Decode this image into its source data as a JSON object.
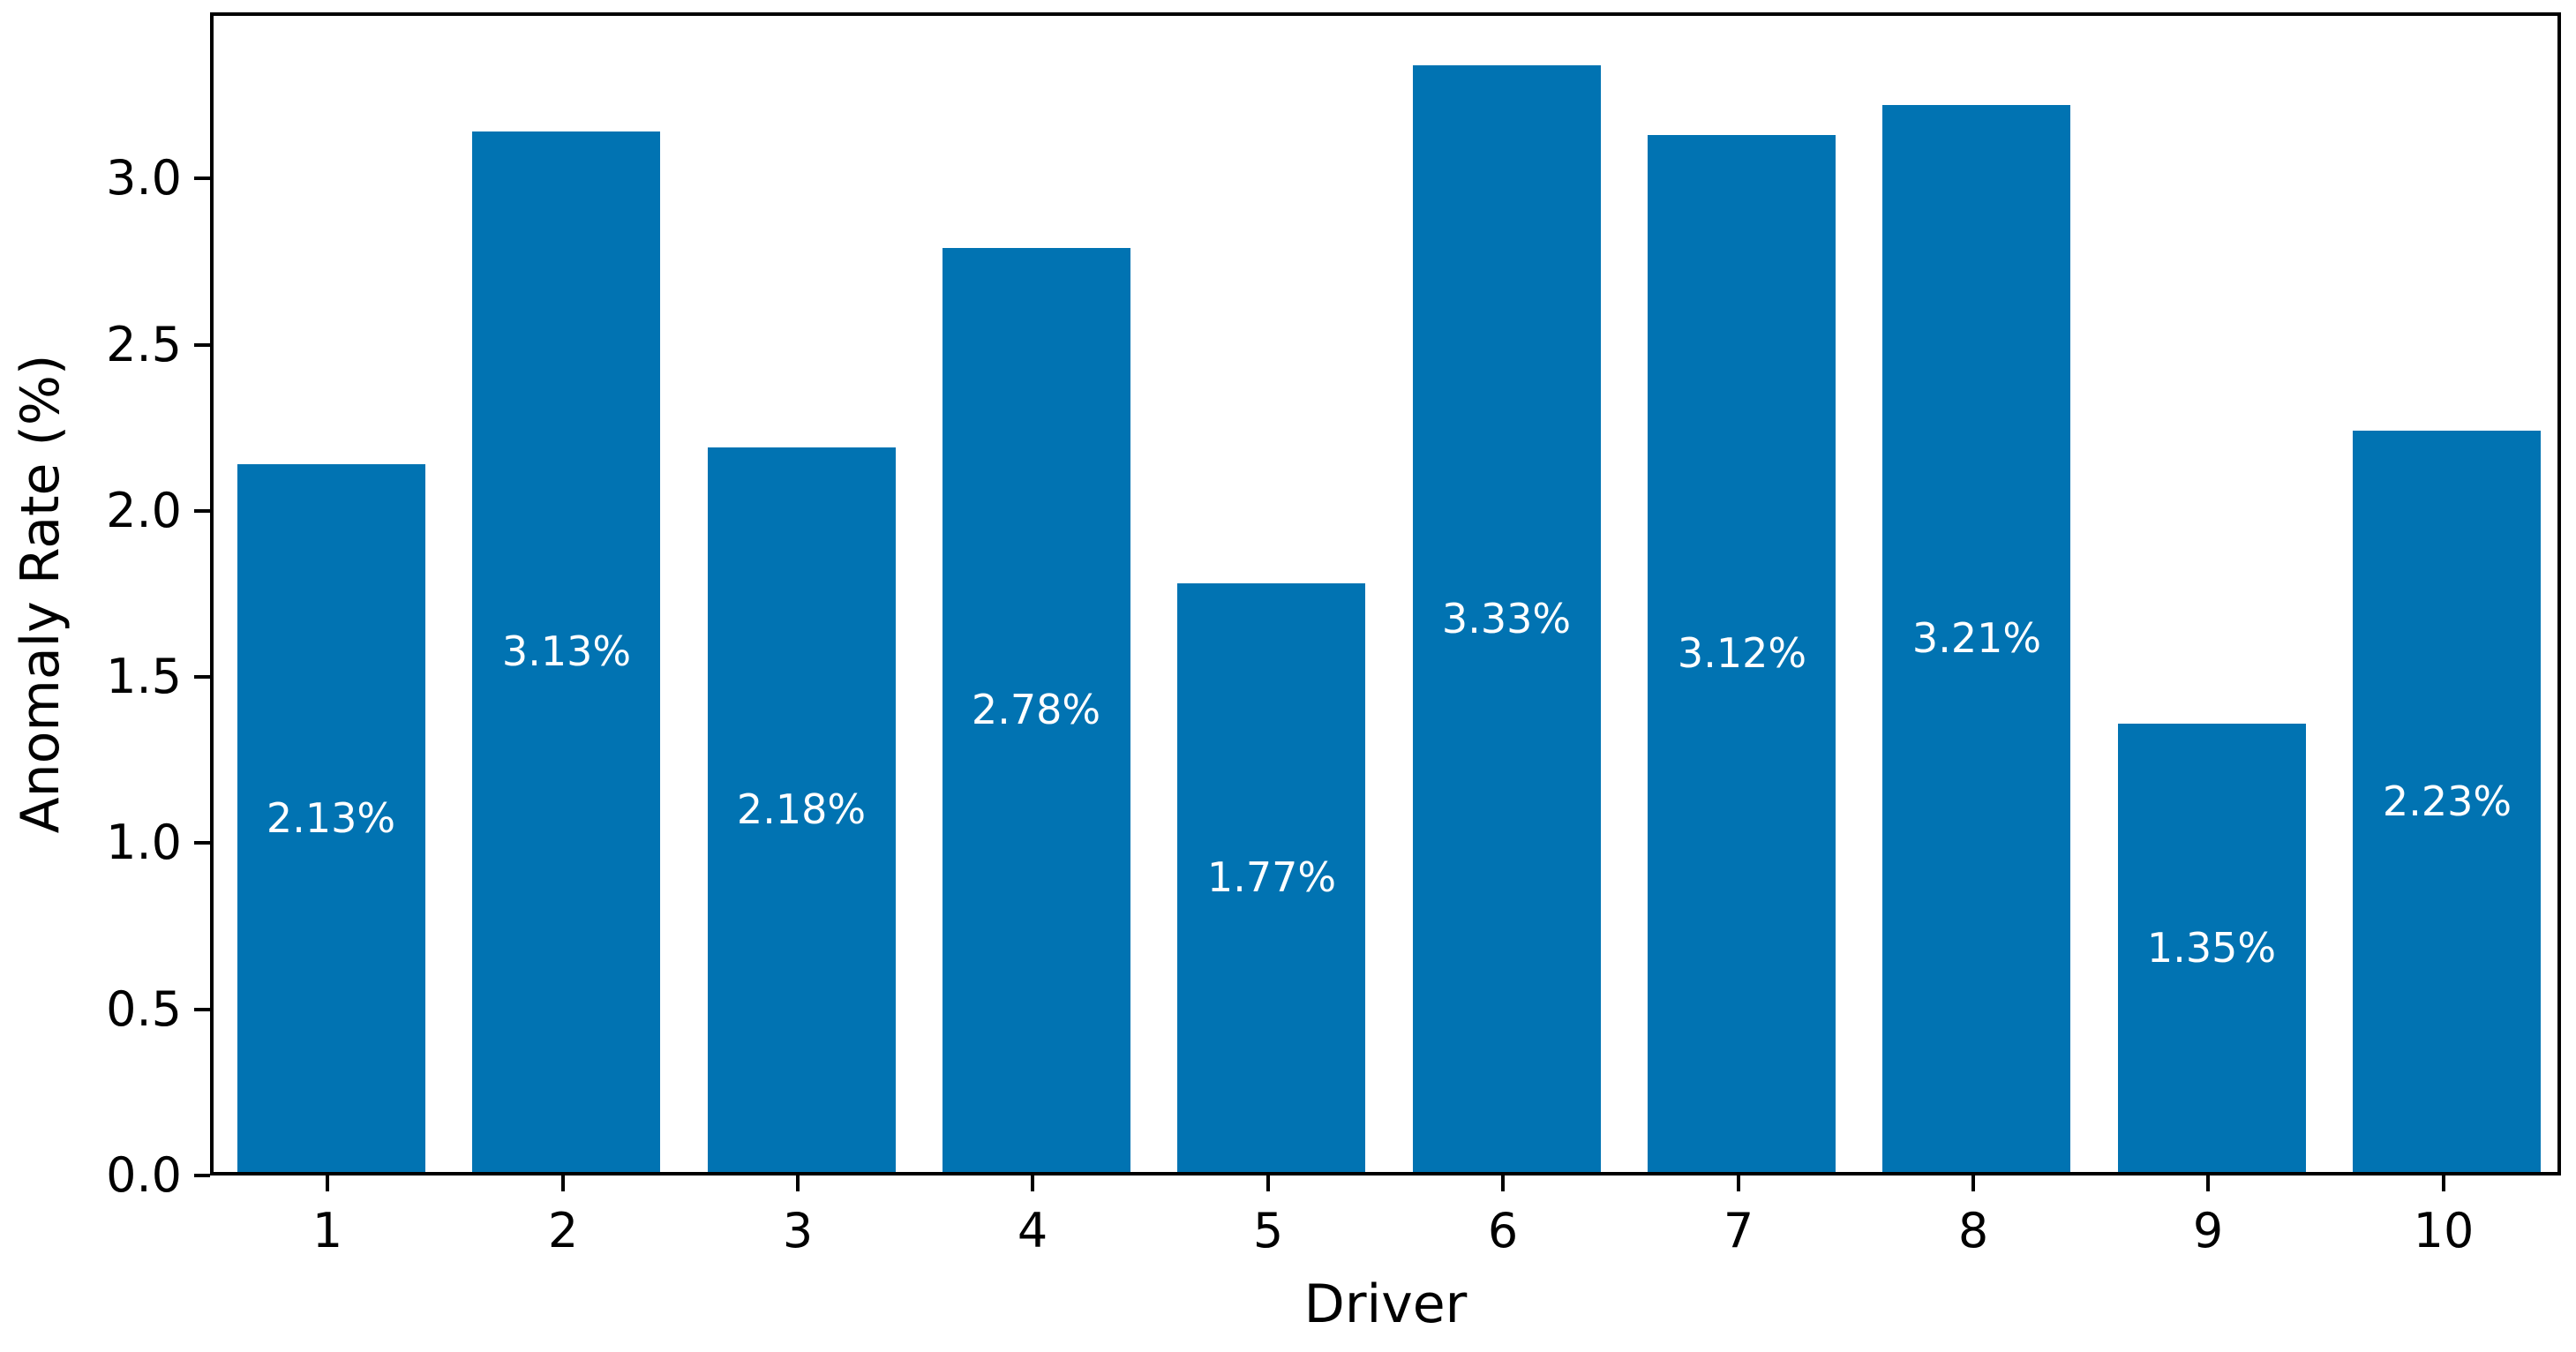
{
  "chart_data": {
    "type": "bar",
    "title": "",
    "xlabel": "Driver",
    "ylabel": "Anomaly Rate (%)",
    "categories": [
      "1",
      "2",
      "3",
      "4",
      "5",
      "6",
      "7",
      "8",
      "9",
      "10"
    ],
    "values": [
      2.13,
      3.13,
      2.18,
      2.78,
      1.77,
      3.33,
      3.12,
      3.21,
      1.35,
      2.23
    ],
    "bar_labels": [
      "2.13%",
      "3.13%",
      "2.18%",
      "2.78%",
      "1.77%",
      "3.33%",
      "3.12%",
      "3.21%",
      "1.35%",
      "2.23%"
    ],
    "yticks": [
      "0.0",
      "0.5",
      "1.0",
      "1.5",
      "2.0",
      "2.5",
      "3.0"
    ],
    "ylim": [
      0,
      3.5
    ],
    "grid": "off",
    "legend": "none",
    "bar_color": "#0173b2",
    "bar_label_color": "#ffffff",
    "axis_color": "#000000",
    "background_color": "#ffffff"
  }
}
